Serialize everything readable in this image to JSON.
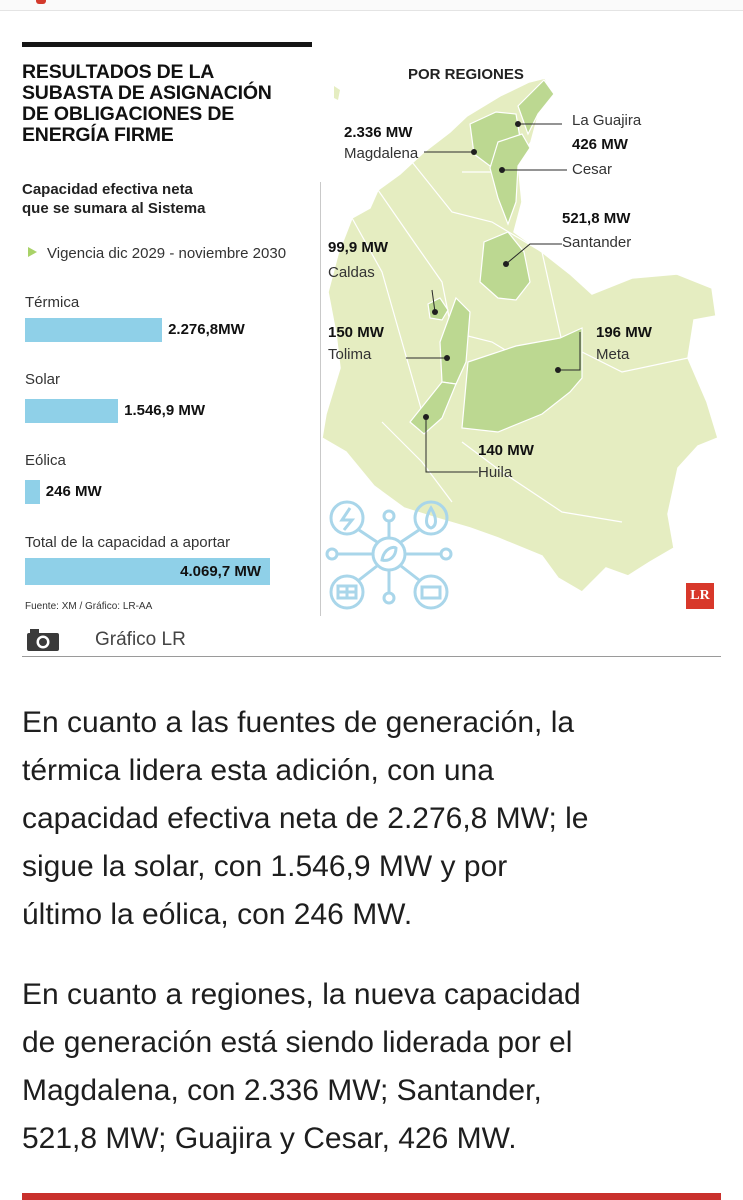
{
  "infographic": {
    "title_lines": [
      "RESULTADOS DE LA",
      "SUBASTA DE ASIGNACIÓN",
      "DE OBLIGACIONES DE",
      "ENERGÍA FIRME"
    ],
    "subtitle_lines": [
      "Capacidad efectiva neta",
      "que se sumara al Sistema"
    ],
    "vigencia": "Vigencia dic 2029 - noviembre 2030",
    "source": "Fuente: XM / Gráfico: LR-AA",
    "colors": {
      "bar": "#8fd0e8",
      "map_land": "#e5edc1",
      "map_highlight": "#bcd891",
      "logo": "#d8382a"
    }
  },
  "chart_data": {
    "type": "bar",
    "orientation": "horizontal",
    "categories": [
      "Térmica",
      "Solar",
      "Eólica"
    ],
    "values": [
      2276.8,
      1546.9,
      246
    ],
    "value_labels": [
      "2.276,8MW",
      "1.546,9 MW",
      "246 MW"
    ],
    "unit": "MW",
    "total": {
      "label": "Total de la capacidad a aportar",
      "value": 4069.7,
      "value_label": "4.069,7 MW"
    }
  },
  "map": {
    "title": "POR REGIONES",
    "regions": [
      {
        "name": "Magdalena",
        "value": "2.336 MW"
      },
      {
        "name": "La Guajira",
        "value": ""
      },
      {
        "name": "Cesar",
        "value": "426 MW"
      },
      {
        "name": "Santander",
        "value": "521,8 MW"
      },
      {
        "name": "Caldas",
        "value": "99,9 MW"
      },
      {
        "name": "Tolima",
        "value": "150 MW"
      },
      {
        "name": "Meta",
        "value": "196 MW"
      },
      {
        "name": "Huila",
        "value": "140 MW"
      }
    ],
    "logo_text": "LR"
  },
  "caption": {
    "text": "Gráfico LR",
    "icon": "camera-icon"
  },
  "article": {
    "paragraphs": [
      [
        "En cuanto a las fuentes de generación, la",
        "térmica lidera esta adición, con una",
        "capacidad efectiva neta de 2.276,8 MW; le",
        "sigue la solar, con 1.546,9 MW y por",
        "último la eólica, con 246 MW."
      ],
      [
        "En cuanto a regiones, la nueva capacidad",
        "de generación está siendo liderada por el",
        "Magdalena, con 2.336 MW; Santander,",
        "521,8 MW; Guajira y Cesar, 426 MW."
      ]
    ]
  }
}
